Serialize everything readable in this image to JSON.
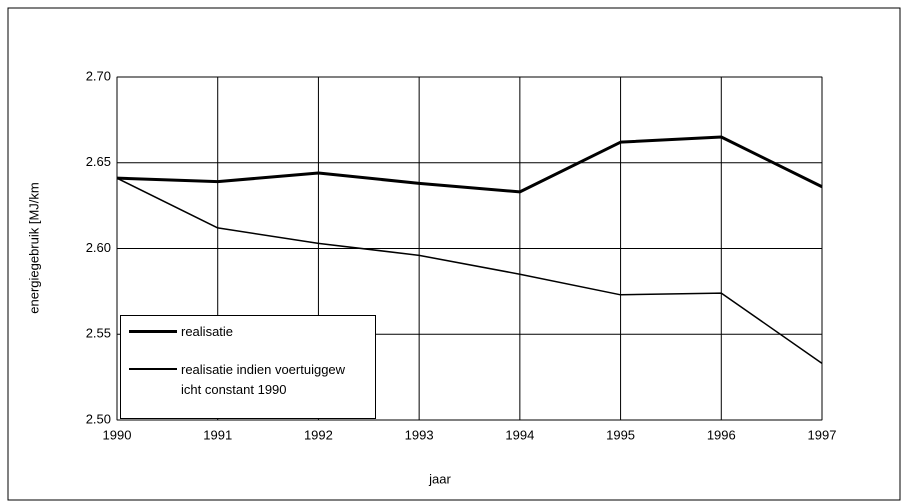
{
  "chart_data": {
    "type": "line",
    "x_label": "jaar",
    "y_label": "energiegebruik [MJ/km",
    "categories": [
      "1990",
      "1991",
      "1992",
      "1993",
      "1994",
      "1995",
      "1996",
      "1997"
    ],
    "series": [
      {
        "name": "realisatie",
        "color": "#000000",
        "width": 3,
        "values": [
          2.641,
          2.639,
          2.644,
          2.638,
          2.633,
          2.662,
          2.665,
          2.636
        ]
      },
      {
        "name": "realisatie indien voertuiggew icht constant 1990",
        "color": "#000000",
        "width": 1.5,
        "values": [
          2.641,
          2.612,
          2.603,
          2.596,
          2.585,
          2.573,
          2.574,
          2.533
        ]
      }
    ],
    "ylim": [
      2.5,
      2.7
    ],
    "yticks": [
      {
        "value": 2.5,
        "label": "2.50"
      },
      {
        "value": 2.55,
        "label": "2.55"
      },
      {
        "value": 2.6,
        "label": "2.60"
      },
      {
        "value": 2.65,
        "label": "2.65"
      },
      {
        "value": 2.7,
        "label": "2.70"
      }
    ],
    "grid": true
  }
}
